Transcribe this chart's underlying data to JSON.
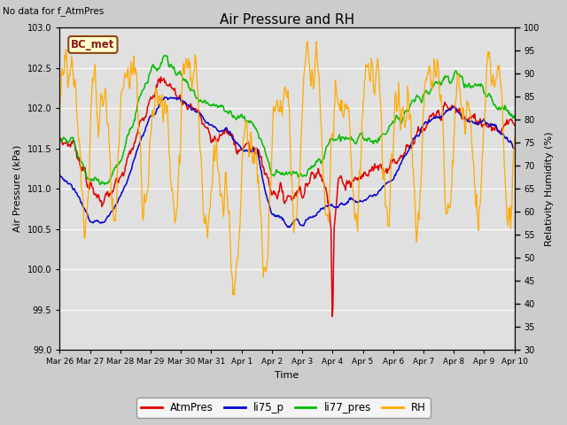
{
  "title": "Air Pressure and RH",
  "top_left_text": "No data for f_AtmPres",
  "box_label": "BC_met",
  "xlabel": "Time",
  "ylabel_left": "Air Pressure (kPa)",
  "ylabel_right": "Relativity Humidity (%)",
  "ylim_left": [
    99.0,
    103.0
  ],
  "ylim_right": [
    30,
    100
  ],
  "yticks_left": [
    99.0,
    99.5,
    100.0,
    100.5,
    101.0,
    101.5,
    102.0,
    102.5,
    103.0
  ],
  "yticks_right": [
    30,
    35,
    40,
    45,
    50,
    55,
    60,
    65,
    70,
    75,
    80,
    85,
    90,
    95,
    100
  ],
  "bg_color": "#cccccc",
  "plot_bg_color": "#e0e0e0",
  "colors": {
    "AtmPres": "#dd0000",
    "li75_p": "#0000cc",
    "li77_pres": "#00bb00",
    "RH": "#ffaa00"
  },
  "legend_labels": [
    "AtmPres",
    "li75_p",
    "li77_pres",
    "RH"
  ],
  "x_tick_labels": [
    "Mar 26",
    "Mar 27",
    "Mar 28",
    "Mar 29",
    "Mar 30",
    "Mar 31",
    "Apr 1",
    "Apr 2",
    "Apr 3",
    "Apr 4",
    "Apr 5",
    "Apr 6",
    "Apr 7",
    "Apr 8",
    "Apr 9",
    "Apr 10"
  ],
  "n_days": 15,
  "figsize": [
    6.4,
    4.8
  ],
  "dpi": 100
}
